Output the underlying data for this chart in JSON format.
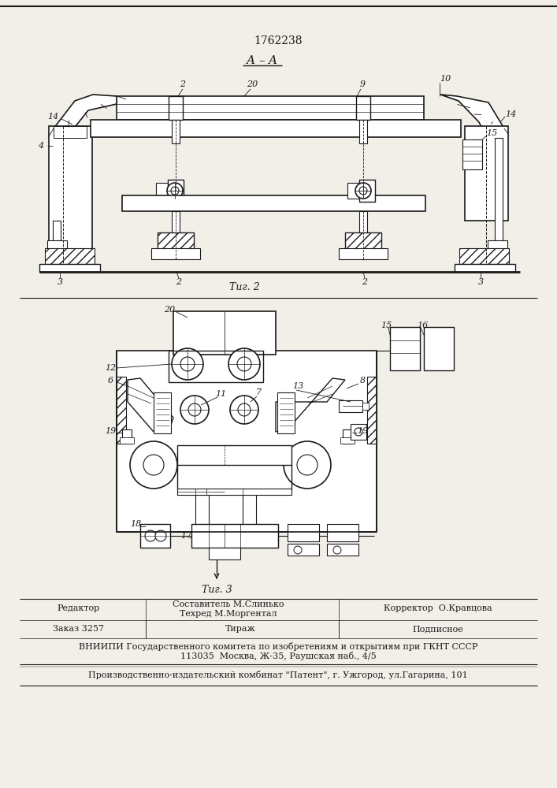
{
  "patent_number": "1762238",
  "bg_color": "#f2efe9",
  "line_color": "#1a1a1a",
  "footer": {
    "line1_left": "Редактор",
    "line1_center": "Составитель М.Слинько",
    "line1_center2": "Техред М.Моргентал",
    "line1_right": "Корректор  О.Кравцова",
    "line2_left": "Заказ 3257",
    "line2_center": "Тираж",
    "line2_right": "Подписное",
    "line3": "ВНИИПИ Государственного комитета по изобретениям и открытиям при ГКНТ СССР",
    "line4": "113035  Москва, Ж-35, Раушская наб., 4/5",
    "line5": "Производственно-издательский комбинат \"Патент\", г. Ужгород, ул.Гагарина, 101"
  }
}
